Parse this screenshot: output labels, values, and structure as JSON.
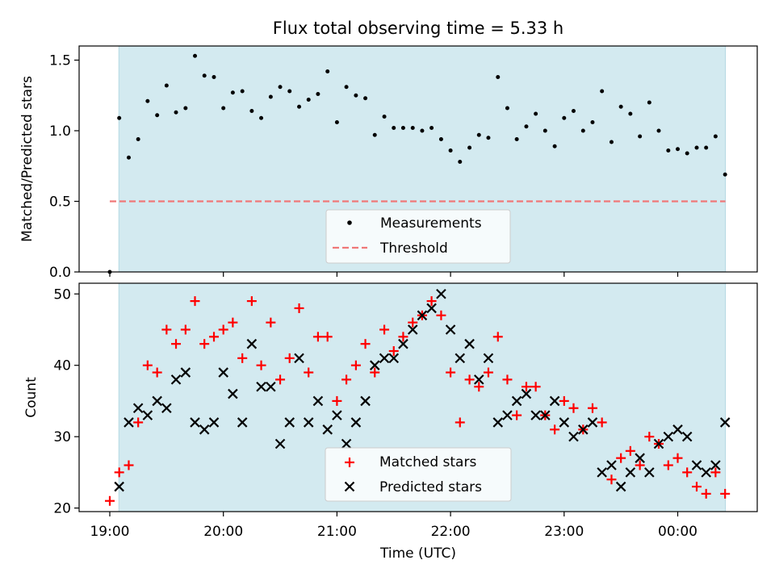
{
  "chart_data": {
    "title": "Flux total observing time = 5.33 h",
    "xlabel": "Time (UTC)",
    "x_ticks": [
      "19:00",
      "20:00",
      "21:00",
      "22:00",
      "23:00",
      "00:00"
    ],
    "x_tick_hours": [
      0,
      1,
      2,
      3,
      4,
      5
    ],
    "x_range_hours": [
      -0.27,
      5.7
    ],
    "shaded_span_hours": [
      0.08,
      5.42
    ],
    "colors": {
      "span": "#d3eaf0",
      "span_edge": "#b4d9e3",
      "threshold": "#f07878",
      "matched": "#ff0000",
      "predicted": "#000000",
      "measurement": "#000000"
    },
    "panels": [
      {
        "type": "scatter",
        "ylabel": "Matched/Predicted stars",
        "ylim": [
          0,
          1.6
        ],
        "yticks": [
          0.0,
          0.5,
          1.0,
          1.5
        ],
        "ytick_labels": [
          "0.0",
          "0.5",
          "1.0",
          "1.5"
        ],
        "threshold": 0.5,
        "threshold_x": [
          0,
          5.42
        ],
        "legend": [
          "Measurements",
          "Threshold"
        ],
        "series": [
          {
            "name": "Measurements",
            "x": [
              0,
              0.083,
              0.167,
              0.25,
              0.333,
              0.417,
              0.5,
              0.583,
              0.667,
              0.75,
              0.833,
              0.917,
              1.0,
              1.083,
              1.167,
              1.25,
              1.333,
              1.417,
              1.5,
              1.583,
              1.667,
              1.75,
              1.833,
              1.917,
              2.0,
              2.083,
              2.167,
              2.25,
              2.333,
              2.417,
              2.5,
              2.583,
              2.667,
              2.75,
              2.833,
              2.917,
              3.0,
              3.083,
              3.167,
              3.25,
              3.333,
              3.417,
              3.5,
              3.583,
              3.667,
              3.75,
              3.833,
              3.917,
              4.0,
              4.083,
              4.167,
              4.25,
              4.333,
              4.417,
              4.5,
              4.583,
              4.667,
              4.75,
              4.833,
              4.917,
              5.0,
              5.083,
              5.167,
              5.25,
              5.333,
              5.417
            ],
            "values": [
              0.0,
              1.09,
              0.81,
              0.94,
              1.21,
              1.11,
              1.32,
              1.13,
              1.16,
              1.53,
              1.39,
              1.38,
              1.16,
              1.27,
              1.28,
              1.14,
              1.09,
              1.24,
              1.31,
              1.28,
              1.17,
              1.22,
              1.26,
              1.42,
              1.06,
              1.31,
              1.25,
              1.23,
              0.97,
              1.1,
              1.02,
              1.02,
              1.02,
              1.0,
              1.02,
              0.94,
              0.86,
              0.78,
              0.88,
              0.97,
              0.95,
              1.38,
              1.16,
              0.94,
              1.03,
              1.12,
              1.0,
              0.89,
              1.09,
              1.14,
              1.0,
              1.06,
              1.28,
              0.92,
              1.17,
              1.12,
              0.96,
              1.2,
              1.0,
              0.86,
              0.87,
              0.84,
              0.88,
              0.88,
              0.96,
              0.69
            ]
          }
        ]
      },
      {
        "type": "scatter",
        "ylabel": "Count",
        "ylim": [
          19.5,
          51.5
        ],
        "yticks": [
          20,
          30,
          40,
          50
        ],
        "ytick_labels": [
          "20",
          "30",
          "40",
          "50"
        ],
        "legend": [
          "Matched stars",
          "Predicted stars"
        ],
        "series": [
          {
            "name": "Matched stars",
            "marker": "+",
            "x": [
              0,
              0.083,
              0.167,
              0.25,
              0.333,
              0.417,
              0.5,
              0.583,
              0.667,
              0.75,
              0.833,
              0.917,
              1.0,
              1.083,
              1.167,
              1.25,
              1.333,
              1.417,
              1.5,
              1.583,
              1.667,
              1.75,
              1.833,
              1.917,
              2.0,
              2.083,
              2.167,
              2.25,
              2.333,
              2.417,
              2.5,
              2.583,
              2.667,
              2.75,
              2.833,
              2.917,
              3.0,
              3.083,
              3.167,
              3.25,
              3.333,
              3.417,
              3.5,
              3.583,
              3.667,
              3.75,
              3.833,
              3.917,
              4.0,
              4.083,
              4.167,
              4.25,
              4.333,
              4.417,
              4.5,
              4.583,
              4.667,
              4.75,
              4.833,
              4.917,
              5.0,
              5.083,
              5.167,
              5.25,
              5.333,
              5.417
            ],
            "values": [
              21,
              25,
              26,
              32,
              40,
              39,
              45,
              43,
              45,
              49,
              43,
              44,
              45,
              46,
              41,
              49,
              40,
              46,
              38,
              41,
              48,
              39,
              44,
              44,
              35,
              38,
              40,
              43,
              39,
              45,
              42,
              44,
              46,
              47,
              49,
              47,
              39,
              32,
              38,
              37,
              39,
              44,
              38,
              33,
              37,
              37,
              33,
              31,
              35,
              34,
              31,
              34,
              32,
              24,
              27,
              28,
              26,
              30,
              29,
              26,
              27,
              25,
              23,
              22,
              25,
              22
            ]
          },
          {
            "name": "Predicted stars",
            "marker": "x",
            "x": [
              0.083,
              0.167,
              0.25,
              0.333,
              0.417,
              0.5,
              0.583,
              0.667,
              0.75,
              0.833,
              0.917,
              1.0,
              1.083,
              1.167,
              1.25,
              1.333,
              1.417,
              1.5,
              1.583,
              1.667,
              1.75,
              1.833,
              1.917,
              2.0,
              2.083,
              2.167,
              2.25,
              2.333,
              2.417,
              2.5,
              2.583,
              2.667,
              2.75,
              2.833,
              2.917,
              3.0,
              3.083,
              3.167,
              3.25,
              3.333,
              3.417,
              3.5,
              3.583,
              3.667,
              3.75,
              3.833,
              3.917,
              4.0,
              4.083,
              4.167,
              4.25,
              4.333,
              4.417,
              4.5,
              4.583,
              4.667,
              4.75,
              4.833,
              4.917,
              5.0,
              5.083,
              5.167,
              5.25,
              5.333,
              5.417
            ],
            "values": [
              23,
              32,
              34,
              33,
              35,
              34,
              38,
              39,
              32,
              31,
              32,
              39,
              36,
              32,
              43,
              37,
              37,
              29,
              32,
              41,
              32,
              35,
              31,
              33,
              29,
              32,
              35,
              40,
              41,
              41,
              43,
              45,
              47,
              48,
              50,
              45,
              41,
              43,
              38,
              41,
              32,
              33,
              35,
              36,
              33,
              33,
              35,
              32,
              30,
              31,
              32,
              25,
              26,
              23,
              25,
              27,
              25,
              29,
              30,
              31,
              30,
              26,
              25,
              26,
              32
            ]
          }
        ]
      }
    ]
  }
}
